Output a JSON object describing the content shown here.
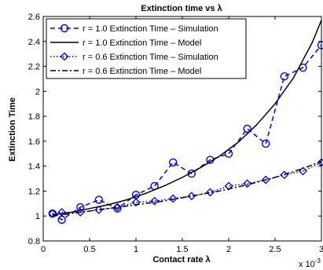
{
  "chart_data": {
    "type": "line",
    "title": "Extinction time vs λ",
    "xlabel": "Contact rate λ",
    "ylabel": "Extinction Time",
    "x_multiplier": "x 10",
    "x_multiplier_exponent": "-3",
    "xlim": [
      0,
      3
    ],
    "ylim": [
      0.8,
      2.6
    ],
    "xticks": [
      "0",
      "0.5",
      "1",
      "1.5",
      "2",
      "2.5",
      "3"
    ],
    "yticks": [
      "0.8",
      "1",
      "1.2",
      "1.4",
      "1.6",
      "1.8",
      "2",
      "2.2",
      "2.4",
      "2.6"
    ],
    "legend_position": "top-left",
    "series": [
      {
        "name": "r = 1.0 Extinction Time – Simulation",
        "color": "#0000ff",
        "style": "dashed",
        "marker": "circle",
        "x": [
          0.1,
          0.2,
          0.4,
          0.6,
          0.8,
          1.0,
          1.2,
          1.4,
          1.6,
          1.8,
          2.0,
          2.2,
          2.4,
          2.6,
          2.8,
          3.0
        ],
        "y": [
          1.02,
          0.97,
          1.07,
          1.13,
          1.06,
          1.17,
          1.24,
          1.43,
          1.34,
          1.45,
          1.5,
          1.7,
          1.58,
          2.12,
          2.19,
          2.37
        ]
      },
      {
        "name": "r = 1.0 Extinction Time – Model",
        "color": "#000000",
        "style": "solid",
        "marker": "none",
        "x": [
          0.1,
          0.3,
          0.5,
          0.7,
          0.9,
          1.1,
          1.3,
          1.5,
          1.7,
          1.9,
          2.1,
          2.3,
          2.5,
          2.7,
          2.9,
          3.0
        ],
        "y": [
          1.01,
          1.03,
          1.06,
          1.09,
          1.13,
          1.18,
          1.24,
          1.31,
          1.39,
          1.48,
          1.59,
          1.73,
          1.9,
          2.11,
          2.39,
          2.57
        ]
      },
      {
        "name": "r = 0.6 Extinction Time – Simulation",
        "color": "#0000ff",
        "style": "dotted",
        "marker": "diamond",
        "x": [
          0.1,
          0.2,
          0.4,
          0.6,
          0.8,
          1.0,
          1.2,
          1.4,
          1.6,
          1.8,
          2.0,
          2.2,
          2.4,
          2.6,
          2.8,
          3.0
        ],
        "y": [
          1.02,
          1.03,
          1.03,
          1.05,
          1.07,
          1.11,
          1.12,
          1.14,
          1.16,
          1.19,
          1.24,
          1.26,
          1.29,
          1.33,
          1.36,
          1.43
        ]
      },
      {
        "name": "r = 0.6 Extinction Time – Model",
        "color": "#000000",
        "style": "dashdot",
        "marker": "none",
        "x": [
          0.1,
          0.4,
          0.7,
          1.0,
          1.3,
          1.6,
          1.9,
          2.2,
          2.5,
          2.8,
          3.0
        ],
        "y": [
          1.0,
          1.03,
          1.06,
          1.09,
          1.12,
          1.16,
          1.2,
          1.25,
          1.31,
          1.38,
          1.44
        ]
      }
    ]
  }
}
